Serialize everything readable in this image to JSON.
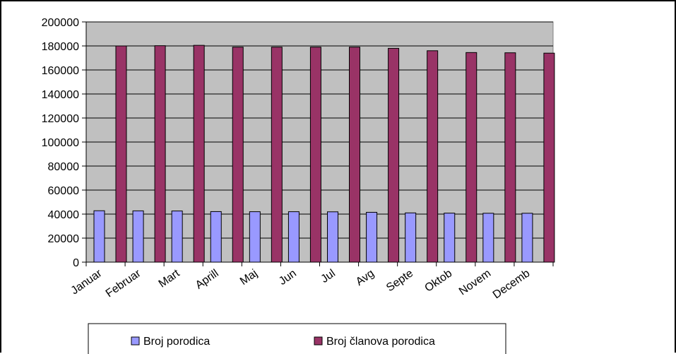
{
  "chart_data": {
    "type": "bar",
    "categories": [
      "Januar",
      "Februar",
      "Mart",
      "Aprill",
      "Maj",
      "Jun",
      "Jul",
      "Avg",
      "Septe",
      "Oktob",
      "Novem",
      "Decemb"
    ],
    "series": [
      {
        "name": "Broj porodica",
        "color": "#9999ff",
        "values": [
          42800,
          42700,
          42600,
          42100,
          42000,
          42000,
          41900,
          41500,
          41000,
          40800,
          40700,
          40700
        ]
      },
      {
        "name": "Broj članova porodica",
        "color": "#993366",
        "values": [
          180000,
          180200,
          180500,
          179000,
          179000,
          179000,
          179000,
          178000,
          176000,
          174500,
          174300,
          174000
        ]
      }
    ],
    "y_ticks": [
      "0",
      "20000",
      "40000",
      "60000",
      "80000",
      "100000",
      "120000",
      "140000",
      "160000",
      "180000",
      "200000"
    ],
    "ylim": [
      0,
      200000
    ],
    "grid": true,
    "plot_background": "#c0c0c0",
    "legend_position": "bottom"
  }
}
